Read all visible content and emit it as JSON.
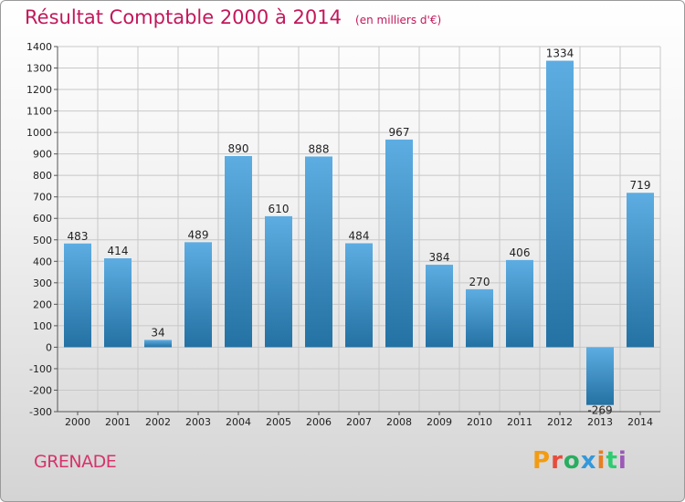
{
  "header": {
    "title": "Résultat Comptable 2000 à 2014",
    "subtitle": "(en milliers d'€)"
  },
  "footer": {
    "commune": "GRENADE",
    "logo_text": "Proxiti"
  },
  "colors": {
    "bar_light": "#5dade2",
    "bar_dark": "#2471a3",
    "title": "#c2185b",
    "logo": [
      "#f39c12",
      "#e74c3c",
      "#27ae60",
      "#3498db",
      "#e67e22",
      "#2ecc71",
      "#9b59b6"
    ]
  },
  "chart_data": {
    "type": "bar",
    "title": "Résultat Comptable 2000 à 2014",
    "subtitle": "(en milliers d'€)",
    "xlabel": "",
    "ylabel": "",
    "categories": [
      "2000",
      "2001",
      "2002",
      "2003",
      "2004",
      "2005",
      "2006",
      "2007",
      "2008",
      "2009",
      "2010",
      "2011",
      "2012",
      "2013",
      "2014"
    ],
    "values": [
      483,
      414,
      34,
      489,
      890,
      610,
      888,
      484,
      967,
      384,
      270,
      406,
      1334,
      -269,
      719
    ],
    "value_labels": [
      "483",
      "414",
      "34",
      "489",
      "890",
      "610",
      "888",
      "484",
      "967",
      "384",
      "270",
      "406",
      "1334",
      "-269",
      "719"
    ],
    "ylim": [
      -300,
      1400
    ],
    "yticks": [
      -300,
      -200,
      -100,
      0,
      100,
      200,
      300,
      400,
      500,
      600,
      700,
      800,
      900,
      1000,
      1100,
      1200,
      1300,
      1400
    ],
    "ytick_labels": [
      "-300",
      "-200",
      "-100",
      "0",
      "100",
      "200",
      "300",
      "400",
      "500",
      "600",
      "700",
      "800",
      "900",
      "1000",
      "1100",
      "1200",
      "1300",
      "1400"
    ],
    "grid": true
  }
}
